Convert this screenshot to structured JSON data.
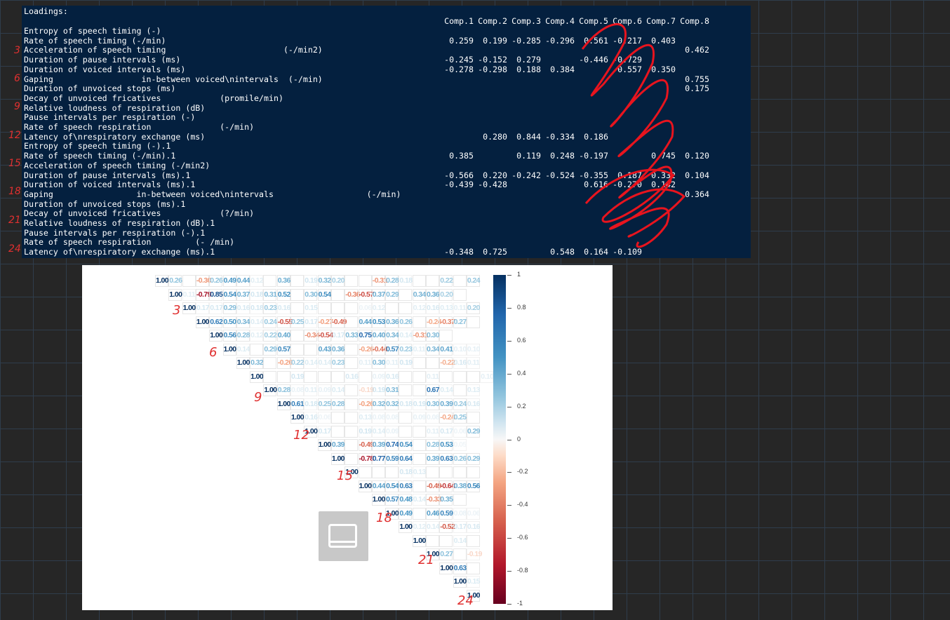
{
  "console": {
    "title": "Loadings:",
    "columns": [
      "Comp.1",
      "Comp.2",
      "Comp.3",
      "Comp.4",
      "Comp.5",
      "Comp.6",
      "Comp.7",
      "Comp.8"
    ],
    "rows": [
      {
        "label": "Entropy of speech timing (-)",
        "v": [
          "",
          "",
          "",
          "",
          "",
          "",
          "",
          ""
        ]
      },
      {
        "label": "Rate of speech timing (-/min)",
        "v": [
          "0.259",
          "0.199",
          "-0.285",
          "-0.296",
          "0.561",
          "-0.217",
          "0.403",
          ""
        ]
      },
      {
        "label": "Acceleration of speech timing                        (-/min2)",
        "v": [
          "",
          "",
          "",
          "",
          "",
          "",
          "",
          "0.462"
        ]
      },
      {
        "label": "Duration of pause intervals (ms)",
        "v": [
          "-0.245",
          "-0.152",
          "0.279",
          "",
          "-0.446",
          "-0.729",
          "",
          ""
        ]
      },
      {
        "label": "Duration of voiced intervals (ms)",
        "v": [
          "-0.278",
          "-0.298",
          "0.188",
          "0.384",
          "",
          "0.557",
          "0.350",
          ""
        ]
      },
      {
        "label": "Gaping                  in-between voiced\\nintervals  (-/min)",
        "v": [
          "",
          "",
          "",
          "",
          "",
          "",
          "",
          "0.755"
        ]
      },
      {
        "label": "Duration of unvoiced stops (ms)",
        "v": [
          "",
          "",
          "",
          "",
          "",
          "",
          "",
          "0.175"
        ]
      },
      {
        "label": "Decay of unvoiced fricatives            (promile/min)",
        "v": [
          "",
          "",
          "",
          "",
          "",
          "",
          "",
          ""
        ]
      },
      {
        "label": "Relative loudness of respiration (dB)",
        "v": [
          "",
          "",
          "",
          "",
          "",
          "",
          "",
          ""
        ]
      },
      {
        "label": "Pause intervals per respiration (-)",
        "v": [
          "",
          "",
          "",
          "",
          "",
          "",
          "",
          ""
        ]
      },
      {
        "label": "Rate of speech respiration              (-/min)",
        "v": [
          "",
          "",
          "",
          "",
          "",
          "",
          "",
          ""
        ]
      },
      {
        "label": "Latency of\\nrespiratory exchange (ms)",
        "v": [
          "",
          "0.280",
          "0.844",
          "-0.334",
          "0.186",
          "",
          "",
          ""
        ]
      },
      {
        "label": "Entropy of speech timing (-).1",
        "v": [
          "",
          "",
          "",
          "",
          "",
          "",
          "",
          ""
        ]
      },
      {
        "label": "Rate of speech timing (-/min).1",
        "v": [
          "0.385",
          "",
          "0.119",
          "0.248",
          "-0.197",
          "",
          "0.745",
          "0.120"
        ]
      },
      {
        "label": "Acceleration of speech timing (-/min2)",
        "v": [
          "",
          "",
          "",
          "",
          "",
          "",
          "",
          ""
        ]
      },
      {
        "label": "Duration of pause intervals (ms).1",
        "v": [
          "-0.566",
          "0.220",
          "-0.242",
          "-0.524",
          "-0.355",
          "0.187",
          "0.332",
          "0.104"
        ]
      },
      {
        "label": "Duration of voiced intervals (ms).1",
        "v": [
          "-0.439",
          "-0.428",
          "",
          "",
          "0.616",
          "-0.270",
          "0.142",
          ""
        ]
      },
      {
        "label": "Gaping                 in-between voiced\\nintervals                   (-/min)",
        "v": [
          "",
          "",
          "",
          "",
          "",
          "",
          "",
          "0.364"
        ]
      },
      {
        "label": "Duration of unvoiced stops (ms).1",
        "v": [
          "",
          "",
          "",
          "",
          "",
          "",
          "",
          ""
        ]
      },
      {
        "label": "Decay of unvoiced fricatives            (?/min)",
        "v": [
          "",
          "",
          "",
          "",
          "",
          "",
          "",
          ""
        ]
      },
      {
        "label": "Relative loudness of respiration (dB).1",
        "v": [
          "",
          "",
          "",
          "",
          "",
          "",
          "",
          ""
        ]
      },
      {
        "label": "Pause intervals per respiration (-).1",
        "v": [
          "",
          "",
          "",
          "",
          "",
          "",
          "",
          ""
        ]
      },
      {
        "label": "Rate of speech respiration         (- /min)",
        "v": [
          "",
          "",
          "",
          "",
          "",
          "",
          "",
          ""
        ]
      },
      {
        "label": "Latency of\\nrespiratory exchange (ms).1",
        "v": [
          "-0.348",
          "0.725",
          "",
          "0.548",
          "0.164",
          "-0.109",
          "",
          ""
        ]
      }
    ]
  },
  "margin_marks": [
    "3",
    "6",
    "9",
    "12",
    "15",
    "18",
    "21",
    "24"
  ],
  "plot_marks": [
    "3",
    "6",
    "9",
    "12",
    "15",
    "18",
    "21",
    "24"
  ],
  "chart_data": {
    "type": "heatmap",
    "layout": "upper-triangle correlation matrix",
    "colorbar": {
      "min": -1,
      "max": 1,
      "ticks": [
        "1",
        "0.8",
        "0.6",
        "0.4",
        "0.2",
        "0",
        "-0.2",
        "-0.4",
        "-0.6",
        "-0.8",
        "-1"
      ]
    },
    "rows": [
      [
        "1.00",
        "0.26",
        "",
        "-0.30",
        "0.26",
        "0.49",
        "0.44",
        "0.12",
        "",
        "0.36",
        "",
        "0.19",
        "0.32",
        "0.20",
        "",
        "",
        "-0.31",
        "0.28",
        "0.18",
        "",
        "",
        "0.22",
        "",
        "0.24"
      ],
      [
        "1.00",
        "0.11",
        "-0.79",
        "0.85",
        "0.54",
        "0.37",
        "0.18",
        "0.31",
        "0.52",
        "",
        "0.30",
        "0.54",
        "",
        "-0.36",
        "-0.57",
        "0.37",
        "0.29",
        "",
        "0.34",
        "0.36",
        "0.20",
        ""
      ],
      [
        "1.00",
        "0.17",
        "0.17",
        "0.29",
        "0.16",
        "0.18",
        "0.23",
        "0.16",
        "",
        "0.15",
        "",
        "",
        "",
        "0.06",
        "0.12",
        "",
        "",
        "0.12",
        "0.16",
        "0.13",
        "0.11",
        "0.20"
      ],
      [
        "1.00",
        "0.62",
        "0.50",
        "0.34",
        "0.14",
        "0.24",
        "-0.55",
        "0.25",
        "0.17",
        "-0.27",
        "-0.49",
        "",
        "0.44",
        "0.53",
        "0.36",
        "0.26",
        "",
        "-0.24",
        "-0.37",
        "0.27",
        ""
      ],
      [
        "1.00",
        "0.56",
        "0.28",
        "0.12",
        "0.22",
        "0.40",
        "",
        "-0.34",
        "-0.54",
        "0.17",
        "0.33",
        "0.75",
        "0.40",
        "0.34",
        "0.14",
        "-0.31",
        "0.30",
        ""
      ],
      [
        "1.00",
        "0.14",
        "",
        "0.29",
        "0.57",
        "",
        "",
        "0.43",
        "0.36",
        "",
        "-0.26",
        "-0.44",
        "0.57",
        "0.23",
        "0.11",
        "0.34",
        "0.41",
        "0.10",
        "0.10"
      ],
      [
        "1.00",
        "0.32",
        "",
        "-0.26",
        "0.22",
        "0.14",
        "0.14",
        "0.23",
        "",
        "0.11",
        "0.30",
        "0.11",
        "0.19",
        "",
        "",
        "-0.22",
        "0.16",
        "0.11"
      ],
      [
        "1.00",
        "",
        "",
        "0.19",
        "",
        "",
        "",
        "0.16",
        "",
        "0.09",
        "0.16",
        "",
        "",
        "0.11",
        "",
        "",
        "",
        "0.10"
      ],
      [
        "1.00",
        "0.28",
        "0.08",
        "0.11",
        "0.09",
        "0.14",
        "",
        "-0.19",
        "0.19",
        "0.31",
        "",
        "",
        "0.67",
        "0.14",
        "",
        "0.13"
      ],
      [
        "1.00",
        "0.61",
        "0.18",
        "0.25",
        "0.28",
        "",
        "-0.26",
        "0.32",
        "0.32",
        "0.18",
        "0.19",
        "0.30",
        "0.39",
        "0.24",
        "0.16"
      ],
      [
        "1.00",
        "0.16",
        "0.06",
        "",
        "",
        "0.13",
        "0.08",
        "0.08",
        "",
        "0.09",
        "0.08",
        "-0.24",
        "0.25",
        ""
      ],
      [
        "1.00",
        "0.17",
        "",
        "",
        "0.19",
        "0.14",
        "0.09",
        "",
        "",
        "0.11",
        "0.17",
        "0.06",
        "0.29"
      ],
      [
        "1.00",
        "0.39",
        "",
        "-0.49",
        "0.39",
        "0.74",
        "0.54",
        "",
        "0.28",
        "0.53",
        "0.05"
      ],
      [
        "1.00",
        "",
        "-0.78",
        "0.77",
        "0.59",
        "0.64",
        "",
        "0.39",
        "0.63",
        "0.26",
        "0.29"
      ],
      [
        "1.00",
        "",
        "",
        "",
        "0.18",
        "0.13",
        "",
        "",
        "",
        ""
      ],
      [
        "1.00",
        "0.44",
        "0.54",
        "0.63",
        "",
        "-0.49",
        "-0.64",
        "0.38",
        "0.56"
      ],
      [
        "1.00",
        "0.57",
        "0.48",
        "0.14",
        "-0.33",
        "0.35",
        ""
      ],
      [
        "1.00",
        "0.49",
        "",
        "0.46",
        "0.59",
        "0.08",
        "0.06"
      ],
      [
        "1.00",
        "0.12",
        "0.14",
        "-0.52",
        "0.17",
        "0.16"
      ],
      [
        "1.00",
        "",
        "",
        "0.14",
        ""
      ],
      [
        "1.00",
        "0.27",
        "",
        "-0.19"
      ],
      [
        "1.00",
        "0.63",
        ""
      ],
      [
        "1.00",
        "0.15"
      ],
      [
        "1.00"
      ]
    ]
  }
}
